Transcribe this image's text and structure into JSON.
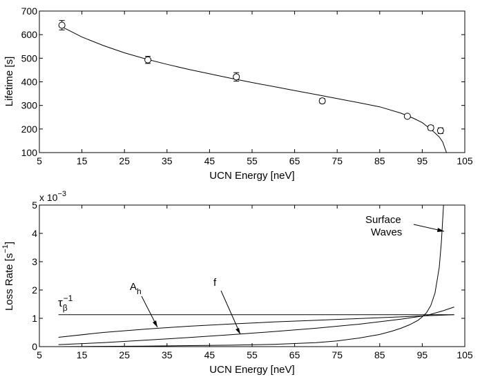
{
  "colors": {
    "line": "#000000",
    "background": "#ffffff"
  },
  "chart_data": [
    {
      "type": "scatter",
      "title": "",
      "xlabel": "UCN Energy [neV]",
      "ylabel": "Lifetime [s]",
      "xlim": [
        5,
        105
      ],
      "ylim": [
        100,
        700
      ],
      "xticks": [
        5,
        15,
        25,
        35,
        45,
        55,
        65,
        75,
        85,
        95,
        105
      ],
      "yticks": [
        100,
        200,
        300,
        400,
        500,
        600,
        700
      ],
      "xtick_labels": [
        "5",
        "15",
        "25",
        "35",
        "45",
        "55",
        "65",
        "75",
        "85",
        "95",
        "105"
      ],
      "ytick_labels": [
        "100",
        "200",
        "300",
        "400",
        "500",
        "600",
        "700"
      ],
      "points": [
        {
          "x": 10.3,
          "y": 640,
          "err": 20
        },
        {
          "x": 30.5,
          "y": 493,
          "err": 15
        },
        {
          "x": 51.3,
          "y": 421,
          "err": 18
        },
        {
          "x": 71.5,
          "y": 319,
          "err": 10
        },
        {
          "x": 91.5,
          "y": 254,
          "err": 6
        },
        {
          "x": 97.0,
          "y": 205,
          "err": 10
        },
        {
          "x": 99.3,
          "y": 193,
          "err": 12
        }
      ],
      "fit": {
        "x": [
          10,
          15,
          20,
          25,
          30,
          35,
          40,
          45,
          50,
          55,
          60,
          65,
          70,
          75,
          80,
          85,
          90,
          93,
          95,
          97,
          98,
          99,
          99.8,
          100.3,
          100.7
        ],
        "y": [
          636,
          590,
          554,
          523,
          497,
          474,
          453,
          434,
          415,
          397,
          380,
          363,
          346,
          329,
          312,
          294,
          267,
          245,
          227,
          199,
          183,
          166,
          145,
          120,
          100
        ]
      }
    },
    {
      "type": "line",
      "title": "",
      "xlabel": "UCN Energy [neV]",
      "ylabel": "Loss Rate [s⁻¹]",
      "ylabel_main": "Loss Rate [s",
      "ylabel_sup": "−1",
      "ylabel_close": "]",
      "y_scale": "x 10",
      "y_scale_exp": "−3",
      "xlim": [
        5,
        105
      ],
      "ylim": [
        0,
        5
      ],
      "xticks": [
        5,
        15,
        25,
        35,
        45,
        55,
        65,
        75,
        85,
        95,
        105
      ],
      "yticks": [
        0,
        1,
        2,
        3,
        4,
        5
      ],
      "xtick_labels": [
        "5",
        "15",
        "25",
        "35",
        "45",
        "55",
        "65",
        "75",
        "85",
        "95",
        "105"
      ],
      "ytick_labels": [
        "0",
        "1",
        "2",
        "3",
        "4",
        "5"
      ],
      "series": [
        {
          "name": "τβ⁻¹",
          "x": [
            9.5,
            102.5
          ],
          "y": [
            1.13,
            1.13
          ]
        },
        {
          "name": "Ah",
          "x": [
            9.5,
            20,
            30,
            40,
            50,
            60,
            70,
            80,
            90,
            96,
            102.5
          ],
          "y": [
            0.33,
            0.5,
            0.62,
            0.72,
            0.8,
            0.87,
            0.93,
            0.99,
            1.05,
            1.09,
            1.13
          ]
        },
        {
          "name": "f",
          "x": [
            9.5,
            20,
            30,
            40,
            50,
            60,
            70,
            80,
            90,
            96,
            100,
            102.5
          ],
          "y": [
            0.07,
            0.14,
            0.23,
            0.32,
            0.42,
            0.53,
            0.65,
            0.79,
            0.97,
            1.1,
            1.27,
            1.4
          ]
        },
        {
          "name": "Surface Waves",
          "x": [
            9.5,
            30,
            50,
            60,
            70,
            75,
            80,
            85,
            88,
            90,
            92,
            94,
            95,
            96,
            97,
            98,
            99,
            99.5,
            100
          ],
          "y": [
            0.0,
            0.02,
            0.05,
            0.08,
            0.14,
            0.2,
            0.3,
            0.43,
            0.55,
            0.65,
            0.77,
            0.93,
            1.05,
            1.2,
            1.45,
            1.9,
            2.8,
            3.7,
            5.0
          ]
        }
      ],
      "annotations": {
        "tau_main": "τ",
        "tau_sub": "β",
        "tau_sup": "−1",
        "ah_main": "A",
        "ah_sub": "h",
        "f": "f",
        "surface_line1": "Surface",
        "surface_line2": "Waves"
      }
    }
  ]
}
